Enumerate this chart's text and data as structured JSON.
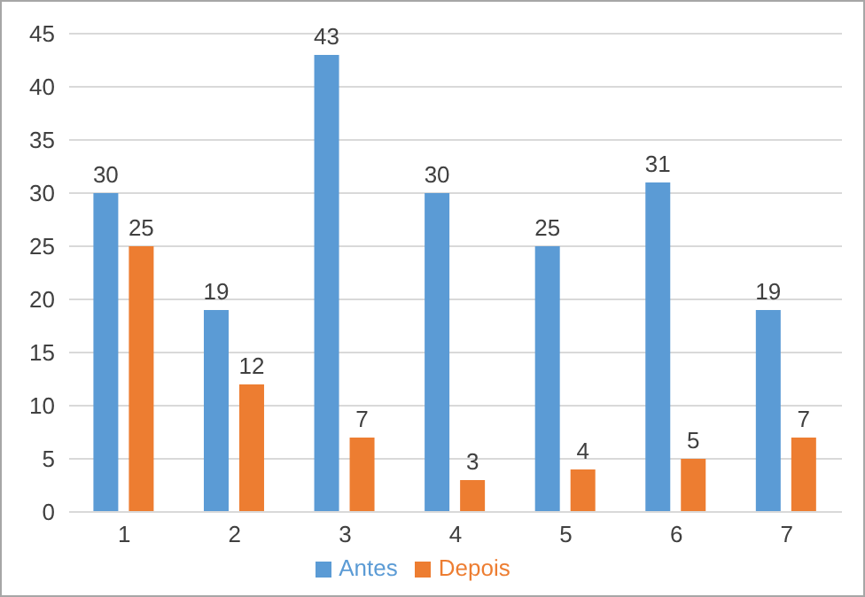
{
  "chart_data": {
    "type": "bar",
    "categories": [
      "1",
      "2",
      "3",
      "4",
      "5",
      "6",
      "7"
    ],
    "series": [
      {
        "name": "Antes",
        "color": "#5b9bd5",
        "values": [
          30,
          19,
          43,
          30,
          25,
          31,
          19
        ]
      },
      {
        "name": "Depois",
        "color": "#ed7d31",
        "values": [
          25,
          12,
          7,
          3,
          4,
          5,
          7
        ]
      }
    ],
    "ylim": [
      0,
      45
    ],
    "yticks": [
      0,
      5,
      10,
      15,
      20,
      25,
      30,
      35,
      40,
      45
    ],
    "grid": "y",
    "legend": "bottom",
    "data_labels": true
  }
}
